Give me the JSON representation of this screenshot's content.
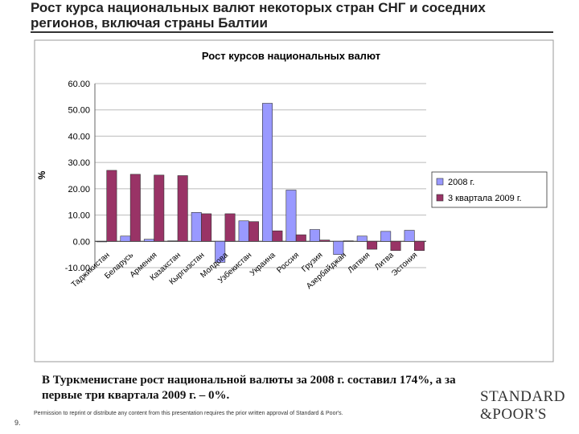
{
  "slide": {
    "title": "Рост курса национальных валют некоторых стран СНГ и соседних регионов, включая страны Балтии",
    "note": "В Туркменистане рост национальной валюты за 2008 г. составил 174%, а за первые три квартала 2009 г. – 0%.",
    "footer": "Permission to reprint or distribute any content from this presentation requires the prior written approval of Standard & Poor's.",
    "page_number": "9.",
    "logo": [
      "STANDARD",
      "&POOR'S"
    ]
  },
  "chart_data": {
    "type": "bar",
    "title": "Рост курсов национальных валют",
    "y_label": "%",
    "categories": [
      "Таджикистан",
      "Беларусь",
      "Армения",
      "Казахстан",
      "Кыргызстан",
      "Молдова",
      "Узбекистан",
      "Украина",
      "Россия",
      "Грузия",
      "Азербайджан",
      "Латвия",
      "Литва",
      "Эстония"
    ],
    "series": [
      {
        "name": "2008 г.",
        "color": "#9999ff",
        "values": [
          -0.2,
          2.0,
          0.8,
          0.2,
          11.0,
          -8.0,
          7.8,
          52.5,
          19.5,
          4.5,
          -5.0,
          2.0,
          3.8,
          4.2
        ]
      },
      {
        "name": "3 квартала 2009 г.",
        "color": "#993366",
        "values": [
          27.0,
          25.5,
          25.2,
          25.0,
          10.5,
          10.5,
          7.5,
          4.0,
          2.5,
          0.5,
          0.2,
          -3.0,
          -3.5,
          -3.5
        ]
      }
    ],
    "ylim": [
      -10,
      60
    ],
    "yticks": [
      {
        "value": -10,
        "label": "-10.00"
      },
      {
        "value": 0,
        "label": "0.00"
      },
      {
        "value": 10,
        "label": "10.00"
      },
      {
        "value": 20,
        "label": "20.00"
      },
      {
        "value": 30,
        "label": "30.00"
      },
      {
        "value": 40,
        "label": "40.00"
      },
      {
        "value": 50,
        "label": "50.00"
      },
      {
        "value": 60,
        "label": "60.00"
      }
    ],
    "grid": true,
    "legend": "right"
  }
}
